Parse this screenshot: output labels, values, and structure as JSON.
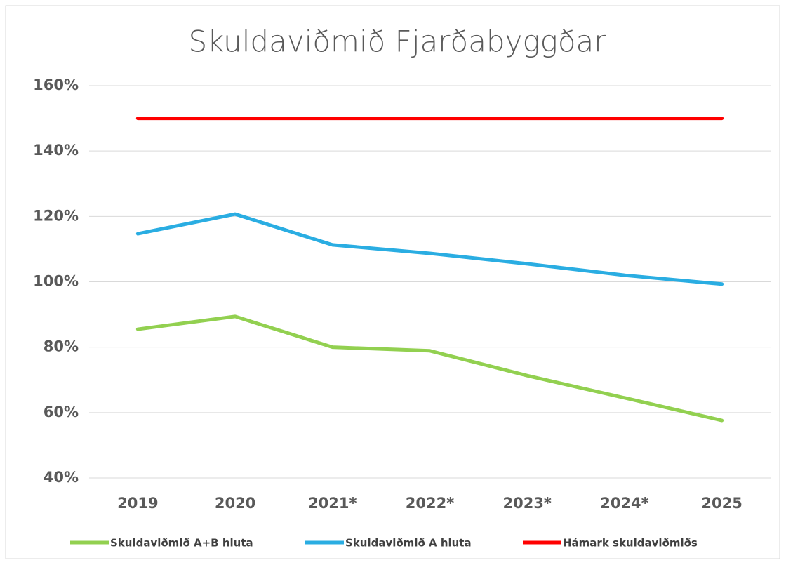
{
  "chart_data": {
    "type": "line",
    "title": "Skuldaviðmið Fjarðabyggðar",
    "categories": [
      "2019",
      "2020",
      "2021*",
      "2022*",
      "2023*",
      "2024*",
      "2025"
    ],
    "series": [
      {
        "name": "Skuldaviðmið A+B hluta",
        "color": "#92d050",
        "values": [
          85.5,
          89.4,
          80,
          78.9,
          71.3,
          64.5,
          57.6
        ]
      },
      {
        "name": "Skuldaviðmið A hluta",
        "color": "#2aade2",
        "values": [
          114.7,
          120.7,
          111.3,
          108.7,
          105.5,
          102,
          99.3
        ]
      },
      {
        "name": "Hámark skuldaviðmiðs",
        "color": "#ff0000",
        "values": [
          150,
          150,
          150,
          150,
          150,
          150,
          150
        ]
      }
    ],
    "ylim": [
      40,
      160
    ],
    "yticks": [
      {
        "value": 40,
        "label": "40%"
      },
      {
        "value": 60,
        "label": "60%"
      },
      {
        "value": 80,
        "label": "80%"
      },
      {
        "value": 100,
        "label": "100%"
      },
      {
        "value": 120,
        "label": "120%"
      },
      {
        "value": 140,
        "label": "140%"
      },
      {
        "value": 160,
        "label": "160%"
      }
    ],
    "grid": true,
    "legend": "bottom"
  }
}
